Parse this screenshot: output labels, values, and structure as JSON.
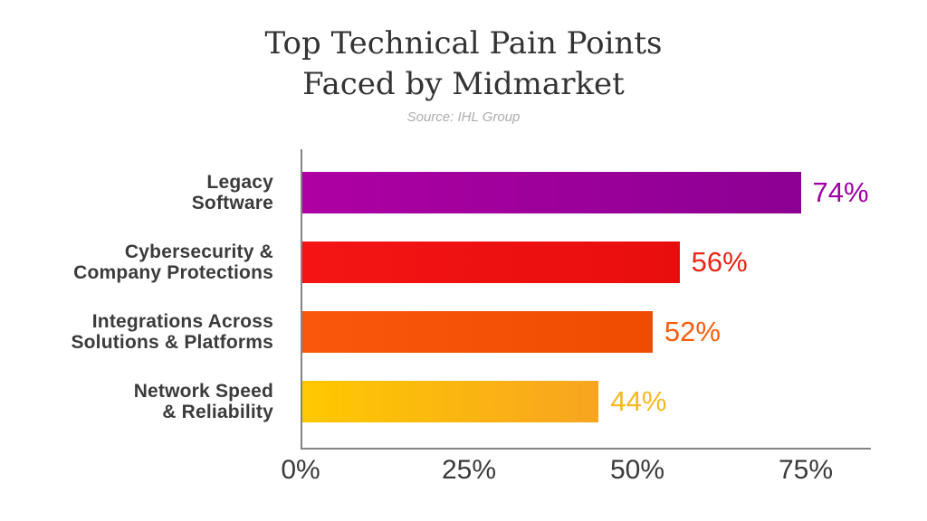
{
  "header": {
    "title_line1": "Top Technical Pain Points",
    "title_line2": "Faced by Midmarket",
    "source": "Source: IHL Group"
  },
  "chart_data": {
    "type": "bar",
    "orientation": "horizontal",
    "title": "Top Technical Pain Points Faced by Midmarket",
    "subtitle": "Source: IHL Group",
    "categories": [
      "Legacy Software",
      "Cybersecurity & Company Protections",
      "Integrations Across Solutions & Platforms",
      "Network Speed & Reliability"
    ],
    "values": [
      74,
      56,
      52,
      44
    ],
    "xlabel": "",
    "ylabel": "",
    "xlim": [
      0,
      84.5
    ],
    "grid": false,
    "legend": "none",
    "x_ticks": [
      "0%",
      "25%",
      "50%",
      "75%"
    ],
    "x_tick_values": [
      0,
      25,
      50,
      75
    ],
    "bars": [
      {
        "label_lines": [
          "Legacy",
          "Software"
        ],
        "value": 74,
        "value_label": "74%",
        "color_start": "#ae00a3",
        "color_end": "#8c0093",
        "value_color": "#9e00a3"
      },
      {
        "label_lines": [
          "Cybersecurity &",
          "Company Protections"
        ],
        "value": 56,
        "value_label": "56%",
        "color_start": "#f41414",
        "color_end": "#e90e0e",
        "value_color": "#ea2417"
      },
      {
        "label_lines": [
          "Integrations Across",
          "Solutions & Platforms"
        ],
        "value": 52,
        "value_label": "52%",
        "color_start": "#fa570d",
        "color_end": "#ef4b01",
        "value_color": "#f75e0e"
      },
      {
        "label_lines": [
          "Network Speed",
          "& Reliability"
        ],
        "value": 44,
        "value_label": "44%",
        "color_start": "#ffc801",
        "color_end": "#f7a51f",
        "value_color": "#f7b722"
      }
    ]
  },
  "colors": {
    "axis_line": "#828287",
    "title_text": "#333333",
    "subtitle_text": "#adadad",
    "category_label": "#3b3b3b",
    "tick_label": "#3a3a3a",
    "background": "#ffffff"
  }
}
